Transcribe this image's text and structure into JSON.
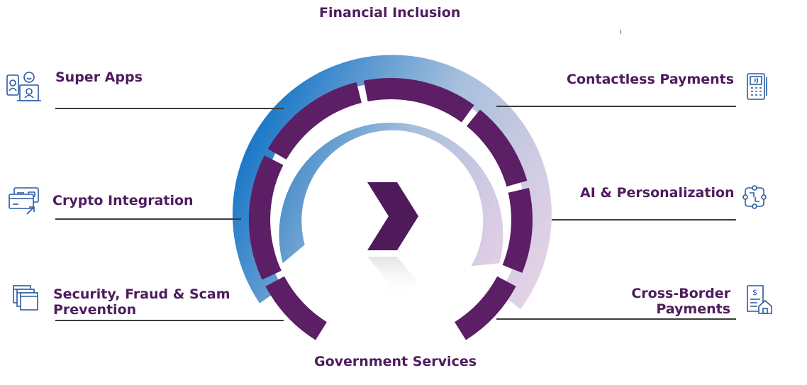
{
  "diagram": {
    "top_label": "Financial Inclusion",
    "bottom_label": "Government Services",
    "left_items": [
      {
        "label": "Super Apps",
        "icon": "super-apps-icon"
      },
      {
        "label": "Crypto Integration",
        "icon": "crypto-card-icon"
      },
      {
        "label": "Security, Fraud & Scam\nPrevention",
        "icon": "security-windows-icon"
      }
    ],
    "right_items": [
      {
        "label": "Contactless Payments",
        "icon": "contactless-terminal-icon"
      },
      {
        "label": "AI & Personalization",
        "icon": "ai-network-icon"
      },
      {
        "label": "Cross-Border\nPayments",
        "icon": "cross-border-invoice-icon"
      }
    ],
    "colors": {
      "segment": "#5c1e64",
      "arc_start": "#0f72c6",
      "arc_mid": "#9fb8d8",
      "arc_end": "#ead2e6",
      "chevron": "#4f1a59",
      "icon_stroke": "#2b5aa0",
      "text": "#4e1c5e"
    }
  }
}
